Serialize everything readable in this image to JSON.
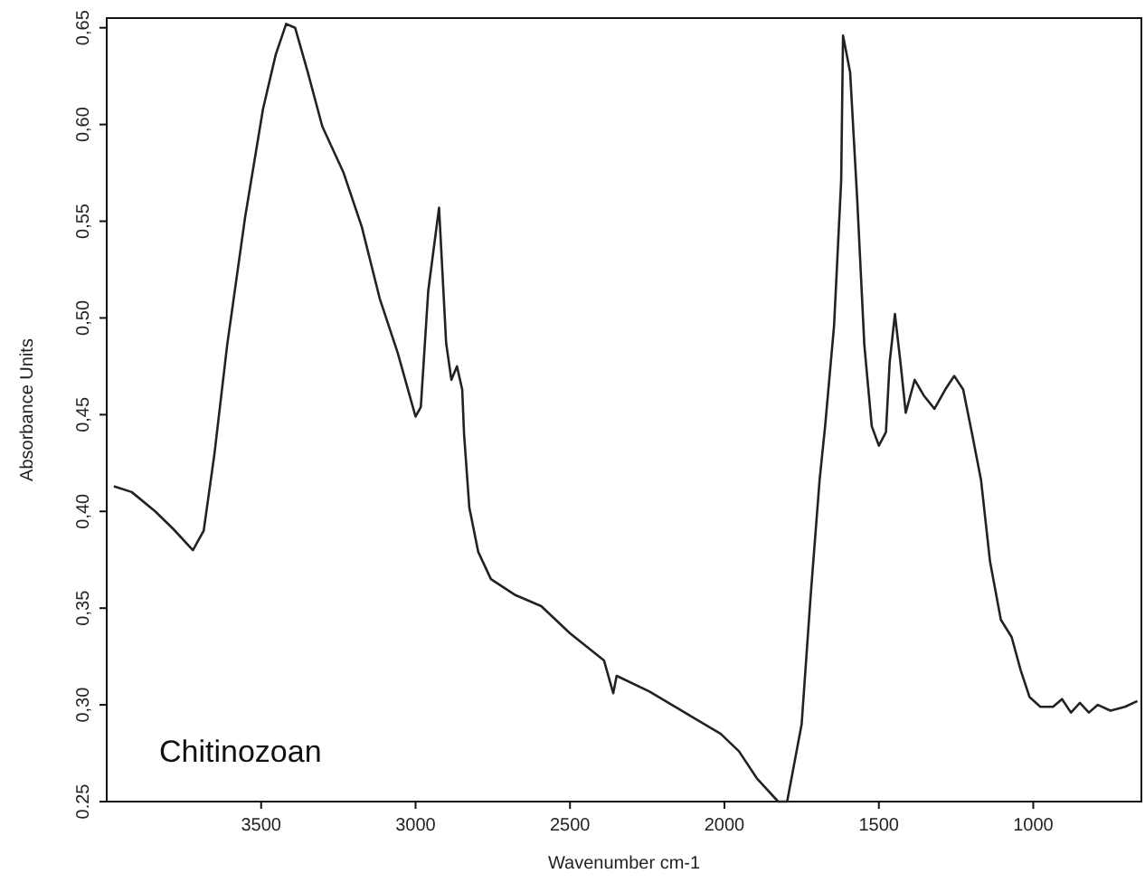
{
  "chart_data": {
    "type": "line",
    "xlabel": "Wavenumber cm-1",
    "ylabel": "Absorbance Units",
    "annotations": [
      "Chitinozoan"
    ],
    "xlim": [
      4000,
      650
    ],
    "ylim": [
      0.25,
      0.655
    ],
    "xticks": [
      3500,
      3000,
      2500,
      2000,
      1500,
      1000
    ],
    "yticks": [
      0.25,
      {
        "value": 0.3,
        "label": "0,30"
      },
      {
        "value": 0.35,
        "label": "0,35"
      },
      {
        "value": 0.4,
        "label": "0,40"
      },
      {
        "value": 0.45,
        "label": "0,45"
      },
      {
        "value": 0.5,
        "label": "0,50"
      },
      {
        "value": 0.55,
        "label": "0,55"
      },
      {
        "value": 0.6,
        "label": "0,60"
      },
      {
        "value": 0.65,
        "label": "0,65"
      }
    ],
    "grid": false,
    "marker": "none",
    "line_style": "solid",
    "series": [
      {
        "color": "#222222",
        "x": [
          3977,
          3919,
          3843,
          3785,
          3721,
          3686,
          3651,
          3610,
          3552,
          3494,
          3453,
          3419,
          3390,
          3349,
          3302,
          3233,
          3174,
          3116,
          3058,
          3000,
          2983,
          2959,
          2924,
          2901,
          2884,
          2866,
          2849,
          2843,
          2826,
          2797,
          2756,
          2680,
          2593,
          2500,
          2390,
          2360,
          2349,
          2244,
          2128,
          2012,
          1953,
          1895,
          1826,
          1797,
          1750,
          1721,
          1692,
          1674,
          1645,
          1622,
          1616,
          1593,
          1570,
          1547,
          1523,
          1500,
          1477,
          1465,
          1448,
          1430,
          1413,
          1401,
          1384,
          1355,
          1320,
          1285,
          1256,
          1227,
          1198,
          1169,
          1140,
          1105,
          1070,
          1041,
          1012,
          977,
          936,
          907,
          878,
          849,
          820,
          791,
          750,
          703,
          663
        ],
        "values": [
          0.413,
          0.41,
          0.4,
          0.391,
          0.38,
          0.39,
          0.43,
          0.486,
          0.552,
          0.608,
          0.636,
          0.652,
          0.65,
          0.627,
          0.599,
          0.575,
          0.547,
          0.51,
          0.482,
          0.449,
          0.454,
          0.514,
          0.557,
          0.487,
          0.468,
          0.475,
          0.463,
          0.44,
          0.402,
          0.379,
          0.365,
          0.357,
          0.351,
          0.337,
          0.323,
          0.306,
          0.315,
          0.307,
          0.296,
          0.285,
          0.276,
          0.262,
          0.25,
          0.25,
          0.29,
          0.356,
          0.416,
          0.444,
          0.496,
          0.571,
          0.646,
          0.627,
          0.561,
          0.486,
          0.444,
          0.434,
          0.441,
          0.477,
          0.502,
          0.477,
          0.451,
          0.458,
          0.468,
          0.46,
          0.453,
          0.463,
          0.47,
          0.463,
          0.44,
          0.416,
          0.374,
          0.344,
          0.335,
          0.318,
          0.304,
          0.299,
          0.299,
          0.303,
          0.296,
          0.301,
          0.296,
          0.3,
          0.297,
          0.299,
          0.302
        ]
      }
    ]
  }
}
